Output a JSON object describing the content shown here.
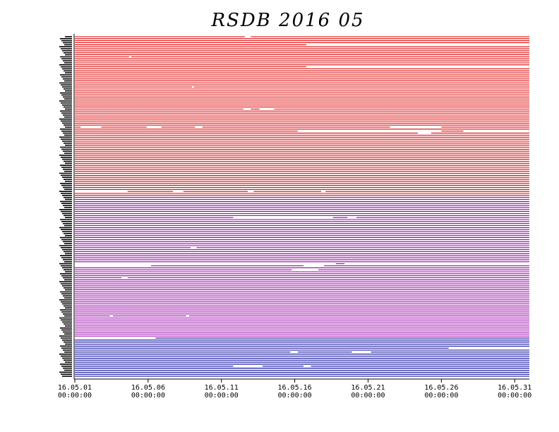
{
  "chart_data": {
    "type": "timeline",
    "title": "RSDB  2016  05",
    "xlabel": "",
    "ylabel": "",
    "x_ticks": [
      {
        "day": 1,
        "date": "16.05.01",
        "time": "00:00:00"
      },
      {
        "day": 6,
        "date": "16.05.06",
        "time": "00:00:00"
      },
      {
        "day": 11,
        "date": "16.05.11",
        "time": "00:00:00"
      },
      {
        "day": 16,
        "date": "16.05.16",
        "time": "00:00:00"
      },
      {
        "day": 21,
        "date": "16.05.21",
        "time": "00:00:00"
      },
      {
        "day": 26,
        "date": "16.05.26",
        "time": "00:00:00"
      },
      {
        "day": 31,
        "date": "16.05.31",
        "time": "00:00:00"
      }
    ],
    "xlim_days": [
      1,
      32
    ],
    "grid": false,
    "series": [
      {
        "color": "#dd0000",
        "rows": 80,
        "gaps": [
          {
            "row": 0,
            "start": 12.6,
            "end": 13.0
          },
          {
            "row": 4,
            "start": 16.8,
            "end": 32.0
          },
          {
            "row": 10,
            "start": 4.7,
            "end": 4.85
          },
          {
            "row": 15,
            "start": 16.8,
            "end": 32.0
          },
          {
            "row": 25,
            "start": 9.0,
            "end": 9.1
          },
          {
            "row": 36,
            "start": 12.5,
            "end": 13.0
          },
          {
            "row": 36,
            "start": 13.6,
            "end": 14.6
          },
          {
            "row": 45,
            "start": 1.4,
            "end": 2.8
          },
          {
            "row": 45,
            "start": 5.9,
            "end": 6.9
          },
          {
            "row": 45,
            "start": 9.2,
            "end": 9.7
          },
          {
            "row": 45,
            "start": 22.5,
            "end": 26.0
          },
          {
            "row": 47,
            "start": 16.2,
            "end": 26.0
          },
          {
            "row": 47,
            "start": 27.5,
            "end": 32.0
          },
          {
            "row": 48,
            "start": 24.4,
            "end": 25.3
          },
          {
            "row": 77,
            "start": 1.0,
            "end": 4.6
          },
          {
            "row": 77,
            "start": 7.7,
            "end": 8.4
          },
          {
            "row": 77,
            "start": 12.8,
            "end": 13.2
          },
          {
            "row": 77,
            "start": 17.8,
            "end": 18.1
          }
        ]
      },
      {
        "color": "#9900aa",
        "rows": 70,
        "gaps": [
          {
            "row": 10,
            "start": 11.8,
            "end": 18.6
          },
          {
            "row": 10,
            "start": 19.6,
            "end": 20.2
          },
          {
            "row": 25,
            "start": 8.9,
            "end": 9.3
          },
          {
            "row": 33,
            "start": 1.0,
            "end": 18.8
          },
          {
            "row": 33,
            "start": 19.4,
            "end": 32.0
          },
          {
            "row": 34,
            "start": 1.0,
            "end": 6.2
          },
          {
            "row": 34,
            "start": 16.6,
            "end": 18.0
          },
          {
            "row": 36,
            "start": 15.8,
            "end": 17.6
          },
          {
            "row": 40,
            "start": 4.2,
            "end": 4.6
          },
          {
            "row": 59,
            "start": 3.4,
            "end": 3.6
          },
          {
            "row": 59,
            "start": 8.6,
            "end": 8.8
          }
        ]
      },
      {
        "color": "#000099",
        "rows": 20,
        "gaps": [
          {
            "row": 0,
            "start": 1.0,
            "end": 4.0
          },
          {
            "row": 0,
            "start": 4.0,
            "end": 6.5
          },
          {
            "row": 5,
            "start": 26.5,
            "end": 32.0
          },
          {
            "row": 7,
            "start": 15.7,
            "end": 16.2
          },
          {
            "row": 7,
            "start": 19.9,
            "end": 21.2
          },
          {
            "row": 14,
            "start": 11.8,
            "end": 13.8
          },
          {
            "row": 14,
            "start": 16.6,
            "end": 17.1
          }
        ]
      }
    ]
  }
}
